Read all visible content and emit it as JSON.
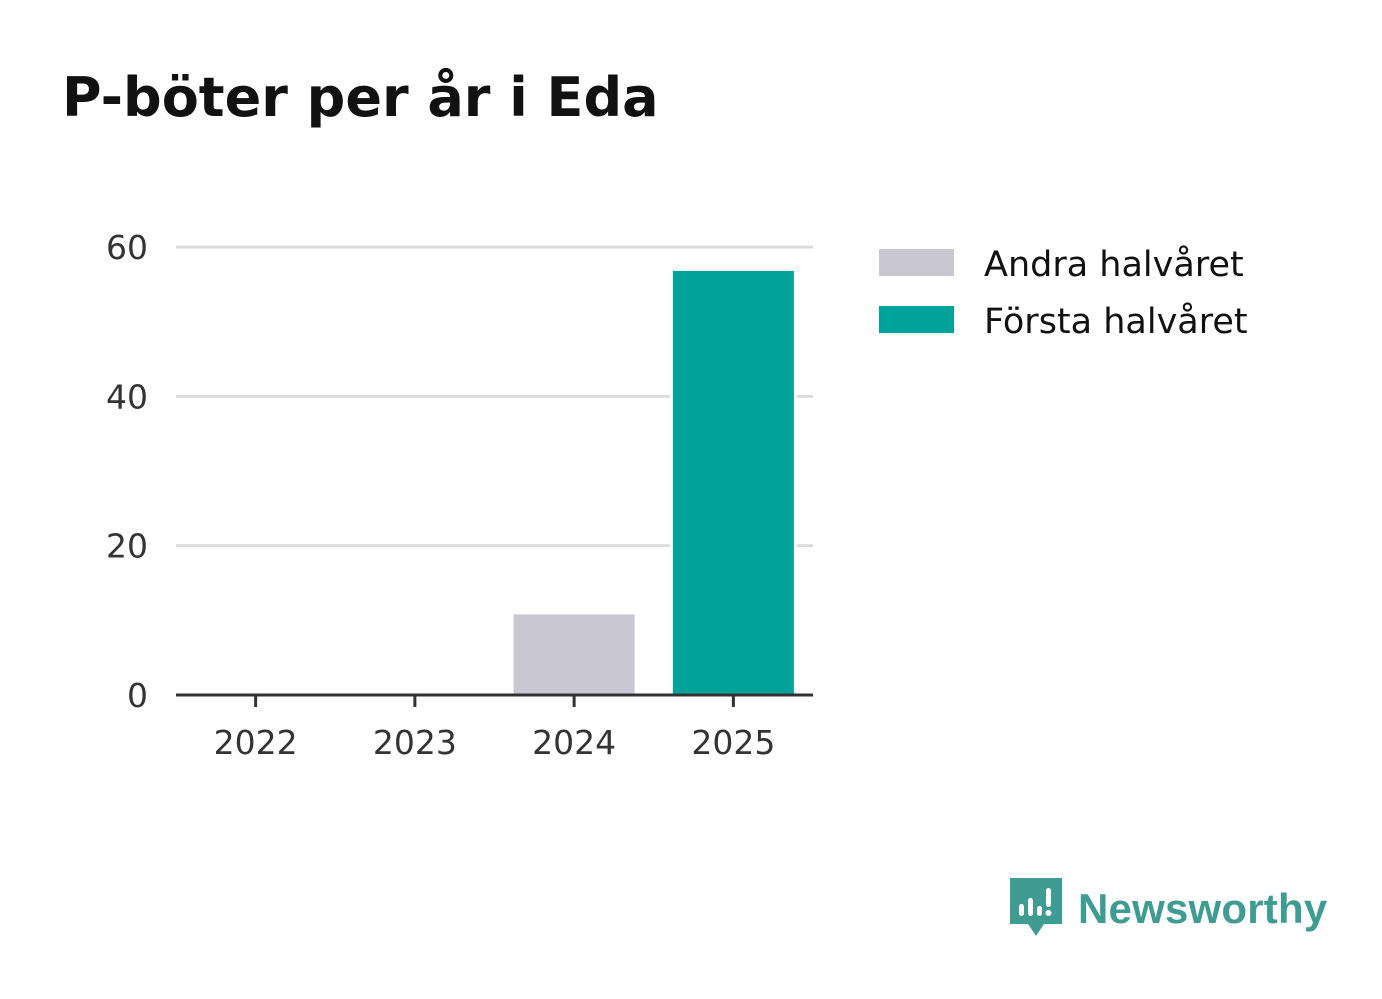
{
  "title": "P-böter per år i Eda",
  "brand": {
    "name": "Newsworthy",
    "icon": "newsworthy-logo-icon",
    "color": "#3f9c93"
  },
  "chart_data": {
    "type": "bar",
    "stacked": true,
    "title": "P-böter per år i Eda",
    "xlabel": "",
    "ylabel": "",
    "categories": [
      "2022",
      "2023",
      "2024",
      "2025"
    ],
    "series": [
      {
        "name": "Andra halvåret",
        "color": "#c8c7d2",
        "values": [
          0,
          0,
          11,
          0
        ]
      },
      {
        "name": "Första halvåret",
        "color": "#00a399",
        "values": [
          0,
          0,
          0,
          57
        ]
      }
    ],
    "ylim": [
      0,
      60
    ],
    "yticks": [
      0,
      20,
      40,
      60
    ],
    "grid": true,
    "legend": "right"
  }
}
